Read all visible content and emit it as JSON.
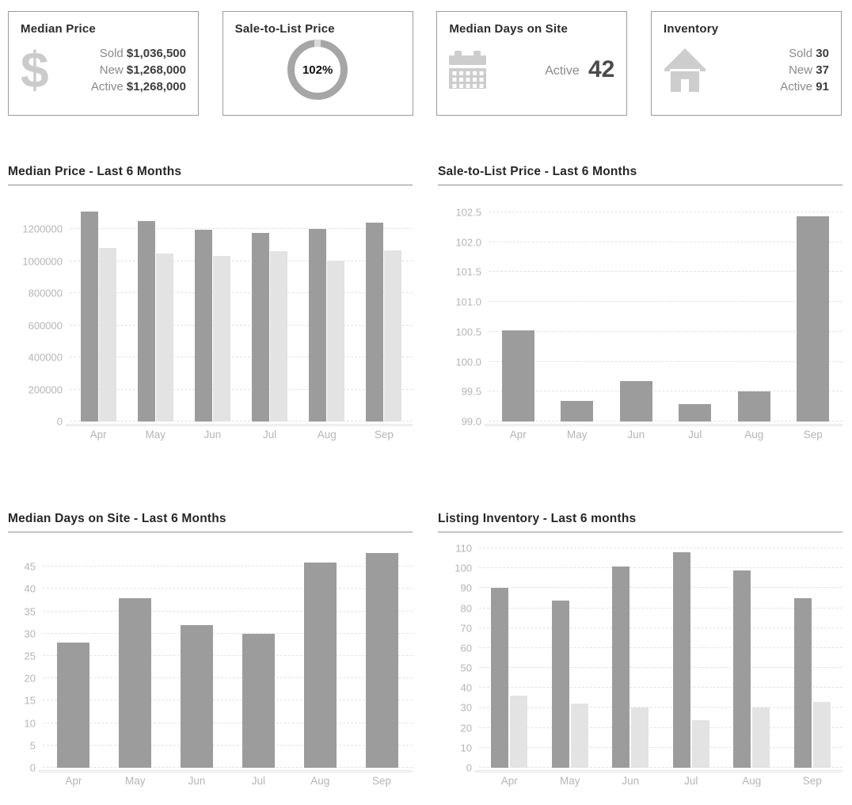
{
  "colors": {
    "bar_primary": "#9c9c9c",
    "bar_secondary": "#e3e3e3",
    "axis_label": "#b5b5b5",
    "chart_title": "#262626",
    "card_border": "#9b9b9b",
    "icon_gray": "#cdcdcd",
    "gauge_ring": "#a6a6a6"
  },
  "cards": [
    {
      "title": "Median Price",
      "icon": "dollar-icon",
      "stats": [
        {
          "label": "Sold",
          "value": "$1,036,500"
        },
        {
          "label": "New",
          "value": "$1,268,000"
        },
        {
          "label": "Active",
          "value": "$1,268,000"
        }
      ]
    },
    {
      "title": "Sale-to-List Price",
      "icon": "gauge-ring",
      "gauge_value": "102%"
    },
    {
      "title": "Median Days on Site",
      "icon": "calendar-icon",
      "stats": [
        {
          "label": "Active",
          "value": "42",
          "large": true
        }
      ]
    },
    {
      "title": "Inventory",
      "icon": "house-icon",
      "stats": [
        {
          "label": "Sold",
          "value": "30"
        },
        {
          "label": "New",
          "value": "37"
        },
        {
          "label": "Active",
          "value": "91"
        }
      ]
    }
  ],
  "chart_data": [
    {
      "type": "bar",
      "title": "Median Price - Last 6 Months",
      "categories": [
        "Apr",
        "May",
        "Jun",
        "Jul",
        "Aug",
        "Sep"
      ],
      "series": [
        {
          "name": "primary",
          "color": "#9c9c9c",
          "pattern": "solid",
          "values": [
            1310000,
            1250000,
            1195000,
            1175000,
            1200000,
            1240000
          ]
        },
        {
          "name": "secondary",
          "color": "#e3e3e3",
          "pattern": "dotted",
          "values": [
            1085000,
            1050000,
            1035000,
            1063000,
            1005000,
            1070000
          ]
        }
      ],
      "ylim": [
        0,
        1400000
      ],
      "yticks": [
        0,
        200000,
        400000,
        600000,
        800000,
        1000000,
        1200000
      ],
      "ytick_labels": [
        "0",
        "200000",
        "400000",
        "600000",
        "800000",
        "1000000",
        "1200000"
      ],
      "grid": true,
      "legend": "none"
    },
    {
      "type": "bar",
      "title": "Sale-to-List Price - Last 6 Months",
      "categories": [
        "Apr",
        "May",
        "Jun",
        "Jul",
        "Aug",
        "Sep"
      ],
      "series": [
        {
          "name": "primary",
          "color": "#9c9c9c",
          "pattern": "solid",
          "values": [
            100.52,
            99.35,
            99.68,
            99.29,
            99.5,
            102.43
          ]
        }
      ],
      "ylim": [
        99.0,
        102.75
      ],
      "yticks": [
        99.0,
        99.5,
        100.0,
        100.5,
        101.0,
        101.5,
        102.0,
        102.5
      ],
      "ytick_labels": [
        "99.0",
        "99.5",
        "100.0",
        "100.5",
        "101.0",
        "101.5",
        "102.0",
        "102.5"
      ],
      "grid": true,
      "legend": "none"
    },
    {
      "type": "bar",
      "title": "Median Days on Site - Last 6 Months",
      "categories": [
        "Apr",
        "May",
        "Jun",
        "Jul",
        "Aug",
        "Sep"
      ],
      "series": [
        {
          "name": "primary",
          "color": "#9c9c9c",
          "pattern": "solid",
          "values": [
            28,
            38,
            32,
            30,
            46,
            48
          ]
        }
      ],
      "ylim": [
        0,
        50
      ],
      "yticks": [
        0,
        5,
        10,
        15,
        20,
        25,
        30,
        35,
        40,
        45
      ],
      "ytick_labels": [
        "0",
        "5",
        "10",
        "15",
        "20",
        "25",
        "30",
        "35",
        "40",
        "45"
      ],
      "grid": true,
      "legend": "none"
    },
    {
      "type": "bar",
      "title": "Listing Inventory - Last 6 months",
      "categories": [
        "Apr",
        "May",
        "Jun",
        "Jul",
        "Aug",
        "Sep"
      ],
      "series": [
        {
          "name": "primary",
          "color": "#9c9c9c",
          "pattern": "solid",
          "dotted_indices": [
            5
          ],
          "values": [
            90,
            84,
            101,
            108,
            99,
            85
          ]
        },
        {
          "name": "secondary",
          "color": "#e3e3e3",
          "pattern": "dotted",
          "values": [
            36,
            32,
            30,
            24,
            30,
            33
          ]
        }
      ],
      "ylim": [
        0,
        112
      ],
      "yticks": [
        0,
        10,
        20,
        30,
        40,
        50,
        60,
        70,
        80,
        90,
        100,
        110
      ],
      "ytick_labels": [
        "0",
        "10",
        "20",
        "30",
        "40",
        "50",
        "60",
        "70",
        "80",
        "90",
        "100",
        "110"
      ],
      "grid": true,
      "legend": "none"
    }
  ]
}
